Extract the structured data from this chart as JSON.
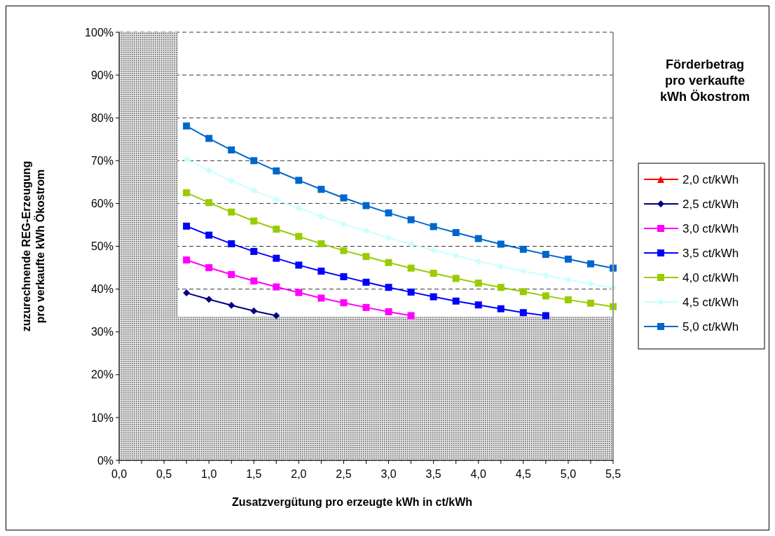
{
  "chart_data": {
    "type": "line",
    "xlabel": "Zusatzvergütung pro erzeugte kWh in ct/kWh",
    "ylabel": "zuzurechnende REG-Erzeugung\npro verkaufte kWh Ökostrom",
    "legend_title": "Förderbetrag\npro verkaufte\nkWh Ökostrom",
    "legend": "right",
    "grid": "y",
    "line_style": "solid",
    "x": [
      0.75,
      1,
      1.25,
      1.5,
      1.75,
      2,
      2.25,
      2.5,
      2.75,
      3,
      3.25,
      3.5,
      3.75,
      4,
      4.25,
      4.5,
      4.75,
      5,
      5.25,
      5.5
    ],
    "xlim": [
      0,
      5.5
    ],
    "xticks": [
      {
        "value": 0,
        "label": "0,0"
      },
      {
        "value": 0.25,
        "label": null
      },
      {
        "value": 0.5,
        "label": "0,5"
      },
      {
        "value": 0.75,
        "label": null
      },
      {
        "value": 1,
        "label": "1,0"
      },
      {
        "value": 1.25,
        "label": null
      },
      {
        "value": 1.5,
        "label": "1,5"
      },
      {
        "value": 1.75,
        "label": null
      },
      {
        "value": 2,
        "label": "2,0"
      },
      {
        "value": 2.25,
        "label": null
      },
      {
        "value": 2.5,
        "label": "2,5"
      },
      {
        "value": 2.75,
        "label": null
      },
      {
        "value": 3,
        "label": "3,0"
      },
      {
        "value": 3.25,
        "label": null
      },
      {
        "value": 3.5,
        "label": "3,5"
      },
      {
        "value": 3.75,
        "label": null
      },
      {
        "value": 4,
        "label": "4,0"
      },
      {
        "value": 4.25,
        "label": null
      },
      {
        "value": 4.5,
        "label": "4,5"
      },
      {
        "value": 4.75,
        "label": null
      },
      {
        "value": 5,
        "label": "5,0"
      },
      {
        "value": 5.25,
        "label": null
      },
      {
        "value": 5.5,
        "label": "5,5"
      }
    ],
    "ylim": [
      0,
      100
    ],
    "yticks": [
      {
        "value": 0,
        "label": "0%"
      },
      {
        "value": 10,
        "label": "10%"
      },
      {
        "value": 20,
        "label": "20%"
      },
      {
        "value": 30,
        "label": "30%"
      },
      {
        "value": 40,
        "label": "40%"
      },
      {
        "value": 50,
        "label": "50%"
      },
      {
        "value": 60,
        "label": "60%"
      },
      {
        "value": 70,
        "label": "70%"
      },
      {
        "value": 80,
        "label": "80%"
      },
      {
        "value": 90,
        "label": "90%"
      },
      {
        "value": 100,
        "label": "100%"
      }
    ],
    "bands": [
      {
        "axis": "x",
        "from": 0,
        "to": 0.65,
        "color": "#a0a0a0"
      },
      {
        "axis": "y",
        "from": 0,
        "to": 33.5,
        "color": "#a0a0a0"
      }
    ],
    "series": [
      {
        "name": "2,0 ct/kWh",
        "color": "#ff0000",
        "marker": "triangle",
        "values": [
          null,
          null,
          null,
          null,
          null,
          null,
          null,
          null,
          null,
          null,
          null,
          null,
          null,
          null,
          null,
          null,
          null,
          null,
          null,
          null
        ]
      },
      {
        "name": "2,5 ct/kWh",
        "color": "#000080",
        "marker": "diamond",
        "values": [
          39.1,
          37.6,
          36.2,
          34.9,
          33.8,
          null,
          null,
          null,
          null,
          null,
          null,
          null,
          null,
          null,
          null,
          null,
          null,
          null,
          null,
          null
        ]
      },
      {
        "name": "3,0 ct/kWh",
        "color": "#ff00ff",
        "marker": "square",
        "values": [
          46.8,
          45.0,
          43.4,
          41.9,
          40.5,
          39.2,
          37.9,
          36.8,
          35.7,
          34.7,
          33.8,
          null,
          null,
          null,
          null,
          null,
          null,
          null,
          null,
          null
        ]
      },
      {
        "name": "3,5 ct/kWh",
        "color": "#0000ff",
        "marker": "square",
        "values": [
          54.7,
          52.6,
          50.6,
          48.8,
          47.2,
          45.6,
          44.2,
          42.9,
          41.6,
          40.4,
          39.3,
          38.2,
          37.2,
          36.3,
          35.4,
          34.5,
          33.8,
          null,
          null,
          null
        ]
      },
      {
        "name": "4,0 ct/kWh",
        "color": "#99cc00",
        "marker": "square",
        "values": [
          62.5,
          60.2,
          58.0,
          55.9,
          54.0,
          52.3,
          50.6,
          49.0,
          47.6,
          46.2,
          44.9,
          43.7,
          42.5,
          41.4,
          40.4,
          39.4,
          38.4,
          37.5,
          36.7,
          35.9
        ]
      },
      {
        "name": "4,5 ct/kWh",
        "color": "#ccffff",
        "marker": "diamond",
        "values": [
          70.3,
          67.7,
          65.3,
          63.0,
          60.9,
          58.9,
          57.0,
          55.2,
          53.6,
          52.0,
          50.5,
          49.1,
          47.8,
          46.5,
          45.3,
          44.2,
          43.2,
          42.2,
          41.2,
          40.3
        ]
      },
      {
        "name": "5,0 ct/kWh",
        "color": "#0066cc",
        "marker": "square",
        "values": [
          78.1,
          75.2,
          72.5,
          70.0,
          67.6,
          65.4,
          63.3,
          61.3,
          59.5,
          57.8,
          56.2,
          54.6,
          53.2,
          51.8,
          50.5,
          49.3,
          48.1,
          47.0,
          45.9,
          44.9
        ]
      }
    ]
  }
}
